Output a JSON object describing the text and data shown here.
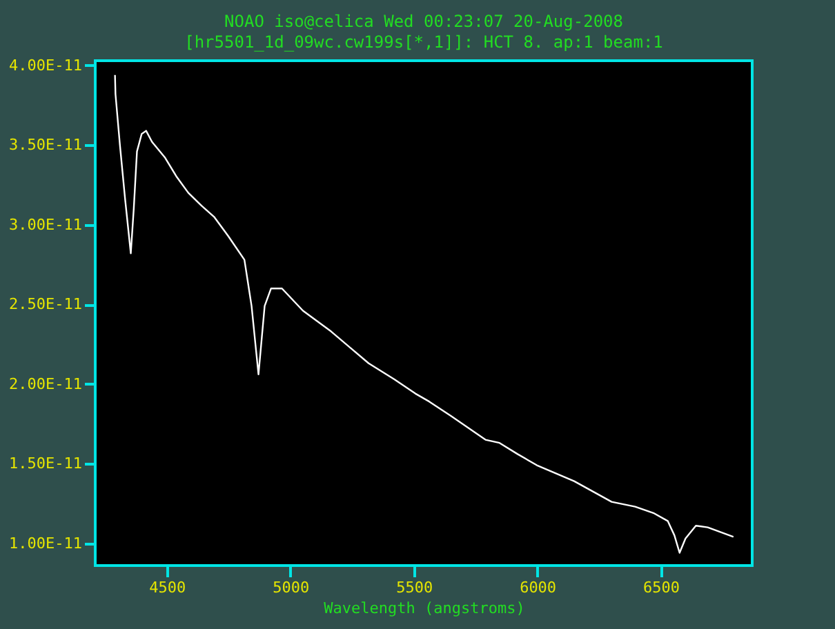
{
  "chart_data": {
    "type": "line",
    "title": "NOAO iso@celica Wed 00:23:07 20-Aug-2008",
    "subtitle": "[hr5501_1d_09wc.cw199s[*,1]]: HCT 8. ap:1 beam:1",
    "xlabel": "Wavelength (angstroms)",
    "x": [
      4290,
      4292,
      4310,
      4331,
      4354,
      4366,
      4379,
      4398,
      4416,
      4440,
      4493,
      4540,
      4587,
      4640,
      4691,
      4748,
      4814,
      4843,
      4871,
      4896,
      4922,
      4966,
      5051,
      5165,
      5317,
      5420,
      5506,
      5562,
      5650,
      5790,
      5847,
      5920,
      5998,
      6149,
      6301,
      6396,
      6470,
      6528,
      6555,
      6576,
      6600,
      6642,
      6690,
      6794
    ],
    "series": [
      {
        "color": "#ffffff",
        "values": [
          3.94e-11,
          3.82e-11,
          3.5e-11,
          3.16e-11,
          2.82e-11,
          3.1e-11,
          3.46e-11,
          3.57e-11,
          3.59e-11,
          3.52e-11,
          3.42e-11,
          3.3e-11,
          3.2e-11,
          3.12e-11,
          3.05e-11,
          2.93e-11,
          2.78e-11,
          2.49e-11,
          2.06e-11,
          2.49e-11,
          2.6e-11,
          2.6e-11,
          2.46e-11,
          2.33e-11,
          2.13e-11,
          2.03e-11,
          1.94e-11,
          1.89e-11,
          1.8e-11,
          1.65e-11,
          1.63e-11,
          1.56e-11,
          1.49e-11,
          1.39e-11,
          1.26e-11,
          1.23e-11,
          1.19e-11,
          1.14e-11,
          1.05e-11,
          9.4e-12,
          1.03e-11,
          1.11e-11,
          1.1e-11,
          1.04e-11
        ]
      }
    ],
    "xlim": [
      4210,
      6870
    ],
    "ylim": [
      8.6e-12,
      4.03e-11
    ],
    "xticks": [
      4500,
      5000,
      5500,
      6000,
      6500
    ],
    "yticks": [
      {
        "value": 1e-11,
        "label": "1.00E-11"
      },
      {
        "value": 1.5e-11,
        "label": "1.50E-11"
      },
      {
        "value": 2e-11,
        "label": "2.00E-11"
      },
      {
        "value": 2.5e-11,
        "label": "2.50E-11"
      },
      {
        "value": 3e-11,
        "label": "3.00E-11"
      },
      {
        "value": 3.5e-11,
        "label": "3.50E-11"
      },
      {
        "value": 4e-11,
        "label": "4.00E-11"
      }
    ],
    "grid": false,
    "marker": "none",
    "line_style": "solid"
  }
}
